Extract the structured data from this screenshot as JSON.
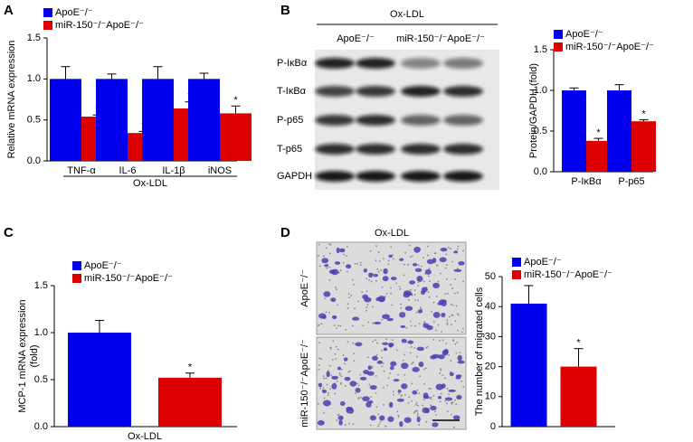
{
  "chart_data": [
    {
      "type": "bar",
      "panel": "A",
      "ylabel": [
        "Relative mRNA expression"
      ],
      "xlabel": "Ox-LDL",
      "categories": [
        "TNF-α",
        "IL-6",
        "IL-1β",
        "iNOS"
      ],
      "series": [
        {
          "name": "ApoE⁻/⁻",
          "color": "#0000ee",
          "values": [
            1.0,
            1.0,
            1.0,
            1.0
          ],
          "errors": [
            0.15,
            0.06,
            0.15,
            0.07
          ]
        },
        {
          "name": "miR-150⁻/⁻ApoE⁻/⁻",
          "color": "#dd0000",
          "values": [
            0.54,
            0.34,
            0.64,
            0.58
          ],
          "errors": [
            0.02,
            0.02,
            0.08,
            0.09
          ],
          "labels": [
            "*",
            "*",
            "*",
            "*"
          ]
        }
      ],
      "ylim": [
        0,
        1.5
      ],
      "yticks": [
        {
          "value": 0,
          "label": "0.0"
        },
        0.5,
        {
          "value": 1,
          "label": "1.0"
        },
        1.5
      ]
    },
    {
      "type": "bar",
      "panel": "B",
      "ylabel": [
        "Protein/GAPDH (fold)"
      ],
      "categories": [
        "P-IκBα",
        "P-p65"
      ],
      "series": [
        {
          "name": "ApoE⁻/⁻",
          "color": "#0000ee",
          "values": [
            1.0,
            1.0
          ],
          "errors": [
            0.03,
            0.07
          ]
        },
        {
          "name": "miR-150⁻/⁻ApoE⁻/⁻",
          "color": "#dd0000",
          "values": [
            0.38,
            0.62
          ],
          "errors": [
            0.03,
            0.02
          ],
          "labels": [
            "*",
            "*"
          ]
        }
      ],
      "ylim": [
        0,
        1.5
      ],
      "yticks": [
        {
          "value": 0,
          "label": "0.0"
        },
        0.5,
        {
          "value": 1,
          "label": "1.0"
        },
        1.5
      ]
    },
    {
      "type": "bar",
      "panel": "C",
      "ylabel": [
        "MCP-1 mRNA expression",
        "(fold)"
      ],
      "categories": [
        "Ox-LDL"
      ],
      "series": [
        {
          "name": "ApoE⁻/⁻",
          "color": "#0000ee",
          "values": [
            1.0
          ],
          "errors": [
            0.13
          ]
        },
        {
          "name": "miR-150⁻/⁻ApoE⁻/⁻",
          "color": "#dd0000",
          "values": [
            0.52
          ],
          "errors": [
            0.05
          ],
          "labels": [
            "*"
          ]
        }
      ],
      "ylim": [
        0,
        1.5
      ],
      "yticks": [
        {
          "value": 0,
          "label": "0.0"
        },
        0.5,
        {
          "value": 1,
          "label": "1.0"
        },
        1.5
      ]
    },
    {
      "type": "bar",
      "panel": "D",
      "ylabel": [
        "The number of migrated cells"
      ],
      "categories": [
        null
      ],
      "series": [
        {
          "name": "ApoE⁻/⁻",
          "color": "#0000ee",
          "values": [
            41
          ],
          "errors": [
            6
          ]
        },
        {
          "name": "miR-150⁻/⁻ApoE⁻/⁻",
          "color": "#dd0000",
          "values": [
            20
          ],
          "errors": [
            6
          ],
          "labels": [
            "*"
          ]
        }
      ],
      "ylim": [
        0,
        50
      ],
      "yticks": [
        0,
        10,
        20,
        30,
        40,
        50
      ]
    }
  ],
  "blot": {
    "treatment": "Ox-LDL",
    "columns": [
      "ApoE⁻/⁻",
      "miR-150⁻/⁻ApoE⁻/⁻"
    ],
    "rows": [
      "P-IκBα",
      "T-IκBα",
      "P-p65",
      "T-p65",
      "GAPDH"
    ]
  },
  "micrograph": {
    "treatment": "Ox-LDL",
    "rows": [
      "ApoE⁻/⁻",
      "miR-150⁻/⁻ApoE⁻/⁻"
    ]
  }
}
